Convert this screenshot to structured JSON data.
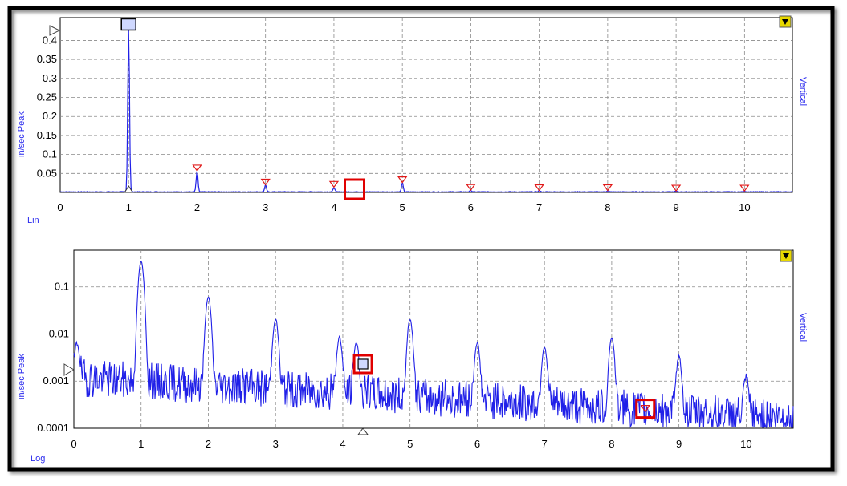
{
  "colors": {
    "trace": "#2020e8",
    "marker_red": "#e01818",
    "highlight": "#e00000",
    "grid": "#8a8a8a",
    "menu": "#e8d800"
  },
  "chart_data": [
    {
      "type": "line",
      "scale_label": "Lin",
      "ylabel": "in/sec Peak",
      "right_label": "Vertical",
      "x_ticks": [
        "0",
        "1",
        "2",
        "3",
        "4",
        "5",
        "6",
        "7",
        "8",
        "9",
        "10"
      ],
      "y_ticks": [
        "0.4",
        "0.35",
        "0.3",
        "0.25",
        "0.2",
        "0.15",
        "0.1",
        "0.05"
      ],
      "xlim": [
        0,
        10.7
      ],
      "ylim": [
        0,
        0.46
      ],
      "grid": true,
      "peaks": [
        {
          "x": 1.0,
          "y": 0.44
        },
        {
          "x": 2.0,
          "y": 0.055
        },
        {
          "x": 3.0,
          "y": 0.018
        },
        {
          "x": 4.0,
          "y": 0.012
        },
        {
          "x": 5.0,
          "y": 0.024
        },
        {
          "x": 6.0,
          "y": 0.004
        },
        {
          "x": 7.0,
          "y": 0.003
        },
        {
          "x": 8.0,
          "y": 0.003
        },
        {
          "x": 9.0,
          "y": 0.002
        },
        {
          "x": 10.0,
          "y": 0.002
        }
      ],
      "harmonic_markers_x": [
        2,
        3,
        4,
        5,
        6,
        7,
        8,
        9,
        10
      ],
      "primary_marker": {
        "x": 1.0,
        "y": 0.44
      },
      "highlight_x": 4.3
    },
    {
      "type": "line",
      "scale_label": "Log",
      "ylabel": "in/sec Peak",
      "right_label": "Vertical",
      "x_ticks": [
        "0",
        "1",
        "2",
        "3",
        "4",
        "5",
        "6",
        "7",
        "8",
        "9",
        "10"
      ],
      "y_ticks": [
        "0.1",
        "0.01",
        "0.001",
        "0.0001"
      ],
      "xlim": [
        0,
        10.7
      ],
      "ylim": [
        0.0001,
        0.6
      ],
      "log_y": true,
      "grid": true,
      "peaks": [
        {
          "x": 0.05,
          "y": 0.005
        },
        {
          "x": 1.0,
          "y": 0.35
        },
        {
          "x": 2.0,
          "y": 0.06
        },
        {
          "x": 3.0,
          "y": 0.02
        },
        {
          "x": 3.95,
          "y": 0.008
        },
        {
          "x": 4.2,
          "y": 0.006
        },
        {
          "x": 5.0,
          "y": 0.02
        },
        {
          "x": 6.0,
          "y": 0.006
        },
        {
          "x": 7.0,
          "y": 0.005
        },
        {
          "x": 8.0,
          "y": 0.008
        },
        {
          "x": 9.0,
          "y": 0.003
        },
        {
          "x": 10.0,
          "y": 0.001
        }
      ],
      "primary_marker": {
        "x": 4.3,
        "y": 0.0023
      },
      "secondary_marker": {
        "x": 8.5,
        "y": 0.00025
      }
    }
  ]
}
